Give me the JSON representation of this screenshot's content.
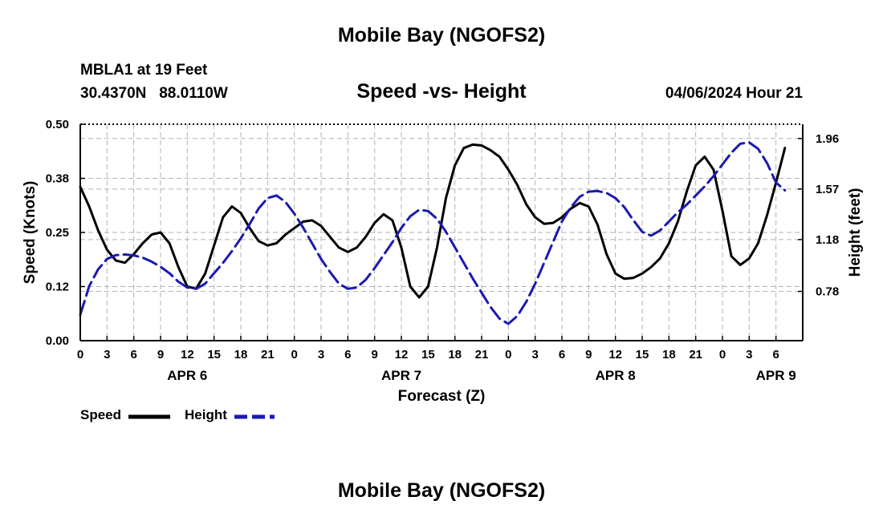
{
  "header": {
    "title": "Mobile Bay (NGOFS2)",
    "station": "MBLA1 at 19 Feet",
    "coordinates": "30.4370N   88.0110W",
    "datetime": "04/06/2024 Hour 21"
  },
  "footer": {
    "title": "Mobile Bay (NGOFS2)"
  },
  "legend": {
    "speed_label": "Speed",
    "height_label": "Height"
  },
  "chart_data": {
    "type": "line",
    "title": "Speed -vs- Height",
    "xlabel": "Forecast (Z)",
    "ylabel_left": "Speed (Knots)",
    "ylabel_right": "Height (feet)",
    "x_hours_range": [
      0,
      81
    ],
    "x_ticks": [
      {
        "h": 0,
        "label": "0"
      },
      {
        "h": 3,
        "label": "3"
      },
      {
        "h": 6,
        "label": "6"
      },
      {
        "h": 9,
        "label": "9"
      },
      {
        "h": 12,
        "label": "12"
      },
      {
        "h": 15,
        "label": "15"
      },
      {
        "h": 18,
        "label": "18"
      },
      {
        "h": 21,
        "label": "21"
      },
      {
        "h": 24,
        "label": "0"
      },
      {
        "h": 27,
        "label": "3"
      },
      {
        "h": 30,
        "label": "6"
      },
      {
        "h": 33,
        "label": "9"
      },
      {
        "h": 36,
        "label": "12"
      },
      {
        "h": 39,
        "label": "15"
      },
      {
        "h": 42,
        "label": "18"
      },
      {
        "h": 45,
        "label": "21"
      },
      {
        "h": 48,
        "label": "0"
      },
      {
        "h": 51,
        "label": "3"
      },
      {
        "h": 54,
        "label": "6"
      },
      {
        "h": 57,
        "label": "9"
      },
      {
        "h": 60,
        "label": "12"
      },
      {
        "h": 63,
        "label": "15"
      },
      {
        "h": 66,
        "label": "18"
      },
      {
        "h": 69,
        "label": "21"
      },
      {
        "h": 72,
        "label": "0"
      },
      {
        "h": 75,
        "label": "3"
      },
      {
        "h": 78,
        "label": "6"
      }
    ],
    "day_labels": [
      {
        "h": 12,
        "label": "APR 6"
      },
      {
        "h": 36,
        "label": "APR 7"
      },
      {
        "h": 60,
        "label": "APR 8"
      },
      {
        "h": 78,
        "label": "APR 9"
      }
    ],
    "left_axis": {
      "min": 0.0,
      "max": 0.5,
      "ticks": [
        "0.00",
        "0.12",
        "0.25",
        "0.38",
        "0.50"
      ],
      "tick_values": [
        0.0,
        0.125,
        0.25,
        0.375,
        0.5
      ]
    },
    "right_axis": {
      "min": 0.4,
      "max": 2.07,
      "ticks": [
        "0.78",
        "1.18",
        "1.57",
        "1.96"
      ],
      "tick_values": [
        0.78,
        1.18,
        1.57,
        1.96
      ]
    },
    "series": [
      {
        "name": "Speed",
        "units": "knots",
        "axis": "left",
        "color": "#000000",
        "dashed": false,
        "points": [
          [
            0,
            0.355
          ],
          [
            1,
            0.31
          ],
          [
            2,
            0.255
          ],
          [
            3,
            0.21
          ],
          [
            4,
            0.185
          ],
          [
            5,
            0.18
          ],
          [
            6,
            0.2
          ],
          [
            7,
            0.225
          ],
          [
            8,
            0.245
          ],
          [
            9,
            0.25
          ],
          [
            10,
            0.225
          ],
          [
            11,
            0.17
          ],
          [
            12,
            0.125
          ],
          [
            13,
            0.12
          ],
          [
            14,
            0.155
          ],
          [
            15,
            0.22
          ],
          [
            16,
            0.285
          ],
          [
            17,
            0.31
          ],
          [
            18,
            0.295
          ],
          [
            19,
            0.26
          ],
          [
            20,
            0.23
          ],
          [
            21,
            0.22
          ],
          [
            22,
            0.225
          ],
          [
            23,
            0.245
          ],
          [
            24,
            0.26
          ],
          [
            25,
            0.275
          ],
          [
            26,
            0.278
          ],
          [
            27,
            0.265
          ],
          [
            28,
            0.24
          ],
          [
            29,
            0.215
          ],
          [
            30,
            0.205
          ],
          [
            31,
            0.215
          ],
          [
            32,
            0.24
          ],
          [
            33,
            0.272
          ],
          [
            34,
            0.292
          ],
          [
            35,
            0.278
          ],
          [
            36,
            0.215
          ],
          [
            37,
            0.125
          ],
          [
            38,
            0.1
          ],
          [
            39,
            0.125
          ],
          [
            40,
            0.215
          ],
          [
            41,
            0.33
          ],
          [
            42,
            0.405
          ],
          [
            43,
            0.445
          ],
          [
            44,
            0.453
          ],
          [
            45,
            0.451
          ],
          [
            46,
            0.44
          ],
          [
            47,
            0.425
          ],
          [
            48,
            0.395
          ],
          [
            49,
            0.36
          ],
          [
            50,
            0.315
          ],
          [
            51,
            0.285
          ],
          [
            52,
            0.27
          ],
          [
            53,
            0.272
          ],
          [
            54,
            0.285
          ],
          [
            55,
            0.305
          ],
          [
            56,
            0.318
          ],
          [
            57,
            0.31
          ],
          [
            58,
            0.268
          ],
          [
            59,
            0.2
          ],
          [
            60,
            0.155
          ],
          [
            61,
            0.143
          ],
          [
            62,
            0.145
          ],
          [
            63,
            0.155
          ],
          [
            64,
            0.17
          ],
          [
            65,
            0.19
          ],
          [
            66,
            0.225
          ],
          [
            67,
            0.275
          ],
          [
            68,
            0.345
          ],
          [
            69,
            0.405
          ],
          [
            70,
            0.425
          ],
          [
            71,
            0.395
          ],
          [
            72,
            0.3
          ],
          [
            73,
            0.195
          ],
          [
            74,
            0.175
          ],
          [
            75,
            0.19
          ],
          [
            76,
            0.225
          ],
          [
            77,
            0.29
          ],
          [
            78,
            0.365
          ],
          [
            79,
            0.445
          ]
        ]
      },
      {
        "name": "Height",
        "units": "feet",
        "axis": "right",
        "color": "#1a1ab0",
        "dashed": true,
        "points": [
          [
            0,
            0.6
          ],
          [
            1,
            0.82
          ],
          [
            2,
            0.95
          ],
          [
            3,
            1.03
          ],
          [
            4,
            1.06
          ],
          [
            5,
            1.065
          ],
          [
            6,
            1.058
          ],
          [
            7,
            1.04
          ],
          [
            8,
            1.01
          ],
          [
            9,
            0.97
          ],
          [
            10,
            0.92
          ],
          [
            11,
            0.855
          ],
          [
            12,
            0.81
          ],
          [
            13,
            0.8
          ],
          [
            14,
            0.84
          ],
          [
            15,
            0.92
          ],
          [
            16,
            1.0
          ],
          [
            17,
            1.09
          ],
          [
            18,
            1.19
          ],
          [
            19,
            1.3
          ],
          [
            20,
            1.42
          ],
          [
            21,
            1.5
          ],
          [
            22,
            1.52
          ],
          [
            23,
            1.47
          ],
          [
            24,
            1.38
          ],
          [
            25,
            1.27
          ],
          [
            26,
            1.15
          ],
          [
            27,
            1.03
          ],
          [
            28,
            0.93
          ],
          [
            29,
            0.84
          ],
          [
            30,
            0.8
          ],
          [
            31,
            0.81
          ],
          [
            32,
            0.87
          ],
          [
            33,
            0.96
          ],
          [
            34,
            1.06
          ],
          [
            35,
            1.16
          ],
          [
            36,
            1.27
          ],
          [
            37,
            1.36
          ],
          [
            38,
            1.41
          ],
          [
            39,
            1.4
          ],
          [
            40,
            1.34
          ],
          [
            41,
            1.24
          ],
          [
            42,
            1.12
          ],
          [
            43,
            1.0
          ],
          [
            44,
            0.88
          ],
          [
            45,
            0.77
          ],
          [
            46,
            0.66
          ],
          [
            47,
            0.57
          ],
          [
            48,
            0.53
          ],
          [
            49,
            0.59
          ],
          [
            50,
            0.7
          ],
          [
            51,
            0.84
          ],
          [
            52,
            1.0
          ],
          [
            53,
            1.16
          ],
          [
            54,
            1.32
          ],
          [
            55,
            1.43
          ],
          [
            56,
            1.51
          ],
          [
            57,
            1.55
          ],
          [
            58,
            1.555
          ],
          [
            59,
            1.54
          ],
          [
            60,
            1.5
          ],
          [
            61,
            1.43
          ],
          [
            62,
            1.33
          ],
          [
            63,
            1.24
          ],
          [
            64,
            1.21
          ],
          [
            65,
            1.25
          ],
          [
            66,
            1.32
          ],
          [
            67,
            1.39
          ],
          [
            68,
            1.45
          ],
          [
            69,
            1.52
          ],
          [
            70,
            1.59
          ],
          [
            71,
            1.67
          ],
          [
            72,
            1.76
          ],
          [
            73,
            1.85
          ],
          [
            74,
            1.92
          ],
          [
            75,
            1.93
          ],
          [
            76,
            1.88
          ],
          [
            77,
            1.77
          ],
          [
            78,
            1.62
          ],
          [
            79,
            1.56
          ]
        ]
      }
    ]
  }
}
